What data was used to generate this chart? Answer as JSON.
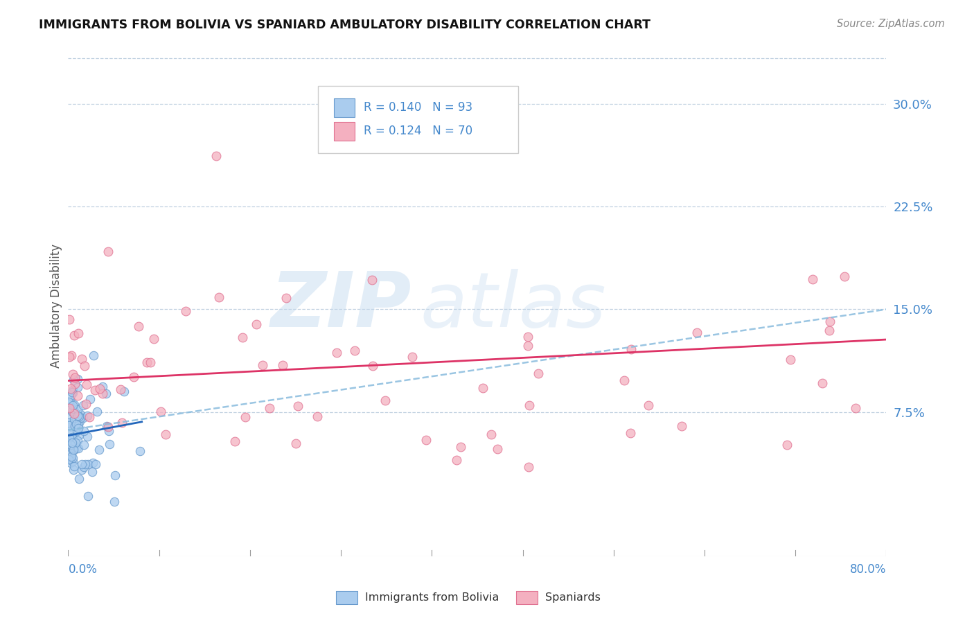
{
  "title": "IMMIGRANTS FROM BOLIVIA VS SPANIARD AMBULATORY DISABILITY CORRELATION CHART",
  "source_text": "Source: ZipAtlas.com",
  "ylabel": "Ambulatory Disability",
  "legend_label1": "Immigrants from Bolivia",
  "legend_label2": "Spaniards",
  "R1": 0.14,
  "N1": 93,
  "R2": 0.124,
  "N2": 70,
  "color_bolivia_face": "#aaccee",
  "color_bolivia_edge": "#6699cc",
  "color_spain_face": "#f4b0c0",
  "color_spain_edge": "#e07090",
  "trend_bolivia_color": "#2266bb",
  "trend_spain_color": "#dd3366",
  "trend_dashed_color": "#88bbdd",
  "ytick_vals": [
    0.075,
    0.15,
    0.225,
    0.3
  ],
  "ytick_labels": [
    "7.5%",
    "15.0%",
    "22.5%",
    "30.0%"
  ],
  "xmin": 0.0,
  "xmax": 0.8,
  "ymin": -0.03,
  "ymax": 0.335,
  "watermark_zip": "ZIP",
  "watermark_atlas": "atlas",
  "background_color": "#ffffff",
  "grid_color": "#c0d0e0",
  "axis_label_color": "#4488cc",
  "legend_text_color": "#333333",
  "legend_rn_color": "#4488cc",
  "title_color": "#111111",
  "source_color": "#888888"
}
